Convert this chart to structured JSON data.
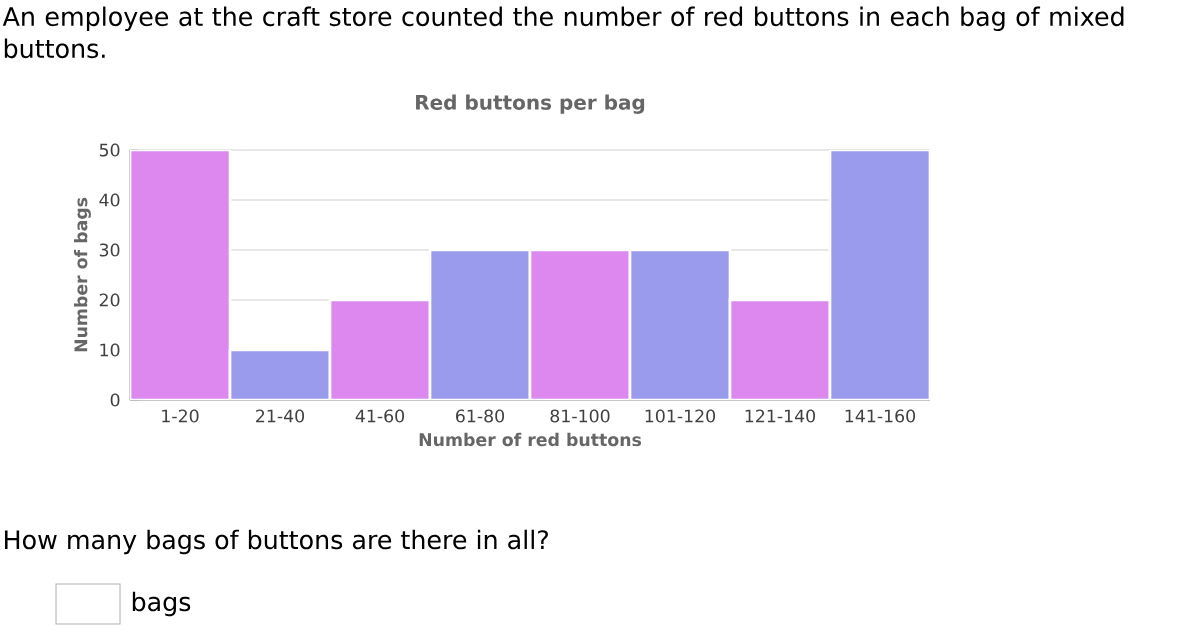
{
  "chart_data": {
    "type": "bar",
    "title": "Red buttons per bag",
    "xlabel": "Number of red buttons",
    "ylabel": "Number of bags",
    "categories": [
      "1-20",
      "21-40",
      "41-60",
      "61-80",
      "81-100",
      "101-120",
      "121-140",
      "141-160"
    ],
    "values": [
      50,
      10,
      20,
      30,
      30,
      30,
      20,
      50
    ],
    "colors": [
      "#dd88ee",
      "#9b9bee",
      "#dd88ee",
      "#9b9bee",
      "#dd88ee",
      "#9b9bee",
      "#dd88ee",
      "#9b9bee"
    ],
    "ylim": [
      0,
      50
    ],
    "yticks": [
      0,
      10,
      20,
      30,
      40,
      50
    ],
    "grid": "y",
    "annotations": [
      "An employee at the craft store counted the number of red buttons in each bag of mixed buttons.",
      "How many bags of buttons are there in all?",
      "bags"
    ]
  }
}
